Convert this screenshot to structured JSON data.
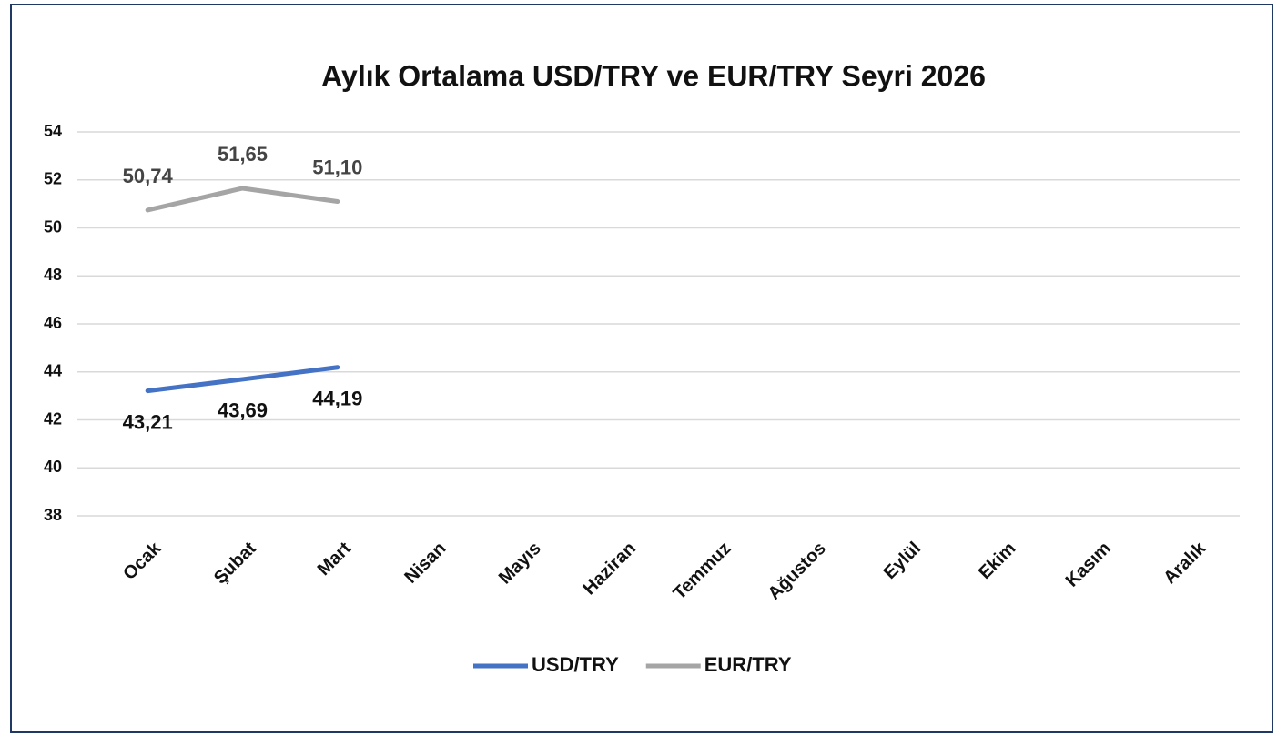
{
  "chart_data": {
    "type": "line",
    "title": "Aylık Ortalama USD/TRY ve EUR/TRY Seyri 2026",
    "categories": [
      "Ocak",
      "Şubat",
      "Mart",
      "Nisan",
      "Mayıs",
      "Haziran",
      "Temmuz",
      "Ağustos",
      "Eylül",
      "Ekim",
      "Kasım",
      "Aralık"
    ],
    "series": [
      {
        "name": "USD/TRY",
        "color": "#4472c4",
        "values": [
          43.21,
          43.69,
          44.19,
          null,
          null,
          null,
          null,
          null,
          null,
          null,
          null,
          null
        ],
        "value_labels": [
          "43,21",
          "43,69",
          "44,19",
          null,
          null,
          null,
          null,
          null,
          null,
          null,
          null,
          null
        ]
      },
      {
        "name": "EUR/TRY",
        "color": "#a5a5a5",
        "values": [
          50.74,
          51.65,
          51.1,
          null,
          null,
          null,
          null,
          null,
          null,
          null,
          null,
          null
        ],
        "value_labels": [
          "50,74",
          "51,65",
          "51,10",
          null,
          null,
          null,
          null,
          null,
          null,
          null,
          null,
          null
        ]
      }
    ],
    "ylim": [
      38,
      54
    ],
    "yticks": [
      38,
      40,
      42,
      44,
      46,
      48,
      50,
      52,
      54
    ],
    "grid": true,
    "legend": "bottom"
  }
}
